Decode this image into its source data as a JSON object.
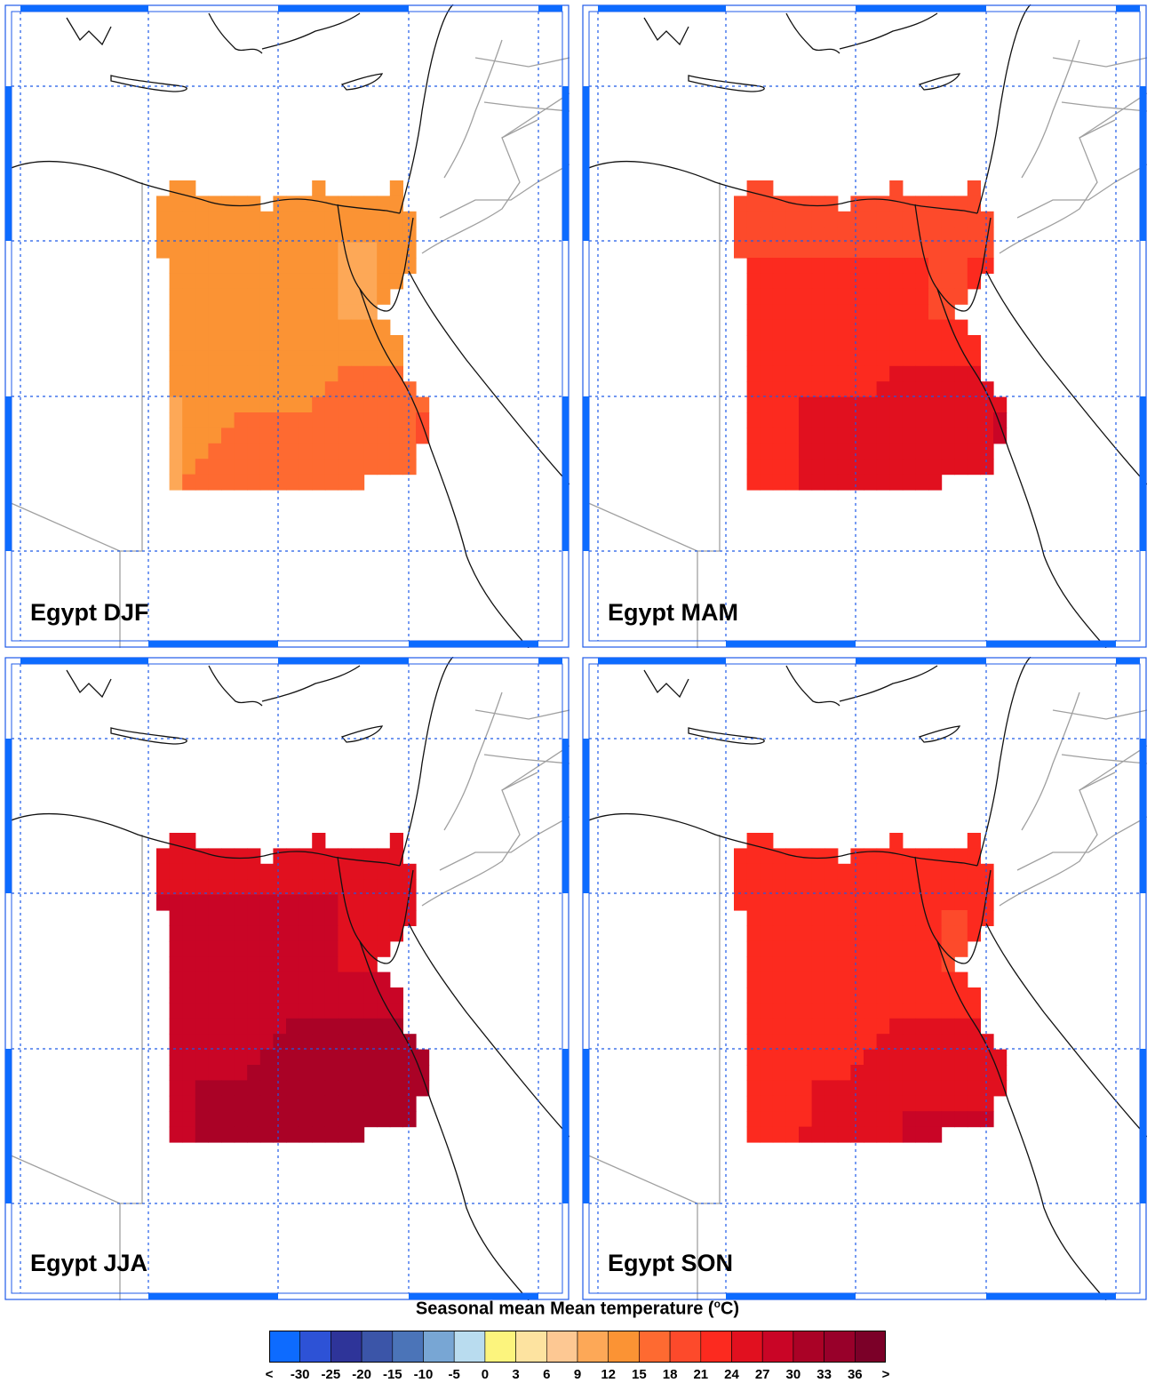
{
  "panels": [
    {
      "id": "djf",
      "title": "Egypt DJF"
    },
    {
      "id": "mam",
      "title": "Egypt MAM"
    },
    {
      "id": "jja",
      "title": "Egypt JJA"
    },
    {
      "id": "son",
      "title": "Egypt SON"
    }
  ],
  "legend": {
    "title_text": "Seasonal mean Mean temperature (",
    "title_sup": "o",
    "title_unit": "C)",
    "colors": [
      "#0d6bff",
      "#2d52d6",
      "#2e3499",
      "#3b55a8",
      "#4b74b8",
      "#78a6d4",
      "#b9dcef",
      "#fcf47d",
      "#fde3a0",
      "#fdc893",
      "#fda857",
      "#fb9334",
      "#fe6a31",
      "#fd4a2b",
      "#fc2a1f",
      "#e1101f",
      "#c90526",
      "#aa0226",
      "#98002a",
      "#7b0028"
    ],
    "ticks": [
      "<",
      "-30",
      "-25",
      "-20",
      "-15",
      "-10",
      "-5",
      "0",
      "3",
      "6",
      "9",
      "12",
      "15",
      "18",
      "21",
      "24",
      "27",
      "30",
      "33",
      "36",
      ">"
    ]
  },
  "chart_data": {
    "type": "heatmap",
    "title": "Seasonal mean Mean temperature (oC)",
    "region": "Egypt",
    "unit": "oC",
    "seasons": [
      "DJF",
      "MAM",
      "JJA",
      "SON"
    ],
    "colorbar_bounds": [
      -30,
      -25,
      -20,
      -15,
      -10,
      -5,
      0,
      3,
      6,
      9,
      12,
      15,
      18,
      21,
      24,
      27,
      30,
      33,
      36
    ],
    "seasonal_range_estimate": {
      "DJF": {
        "dominant": "12 to 15",
        "south_southeast": "15 to 18",
        "coastal_sinai_spots": "9 to 12"
      },
      "MAM": {
        "north": "18 to 21",
        "center": "21 to 24",
        "south": "24 to 27"
      },
      "JJA": {
        "north": "24 to 27",
        "center": "27 to 30",
        "south": "30 to 33"
      },
      "SON": {
        "north": "21 to 24",
        "south": "24 to 27"
      }
    }
  }
}
